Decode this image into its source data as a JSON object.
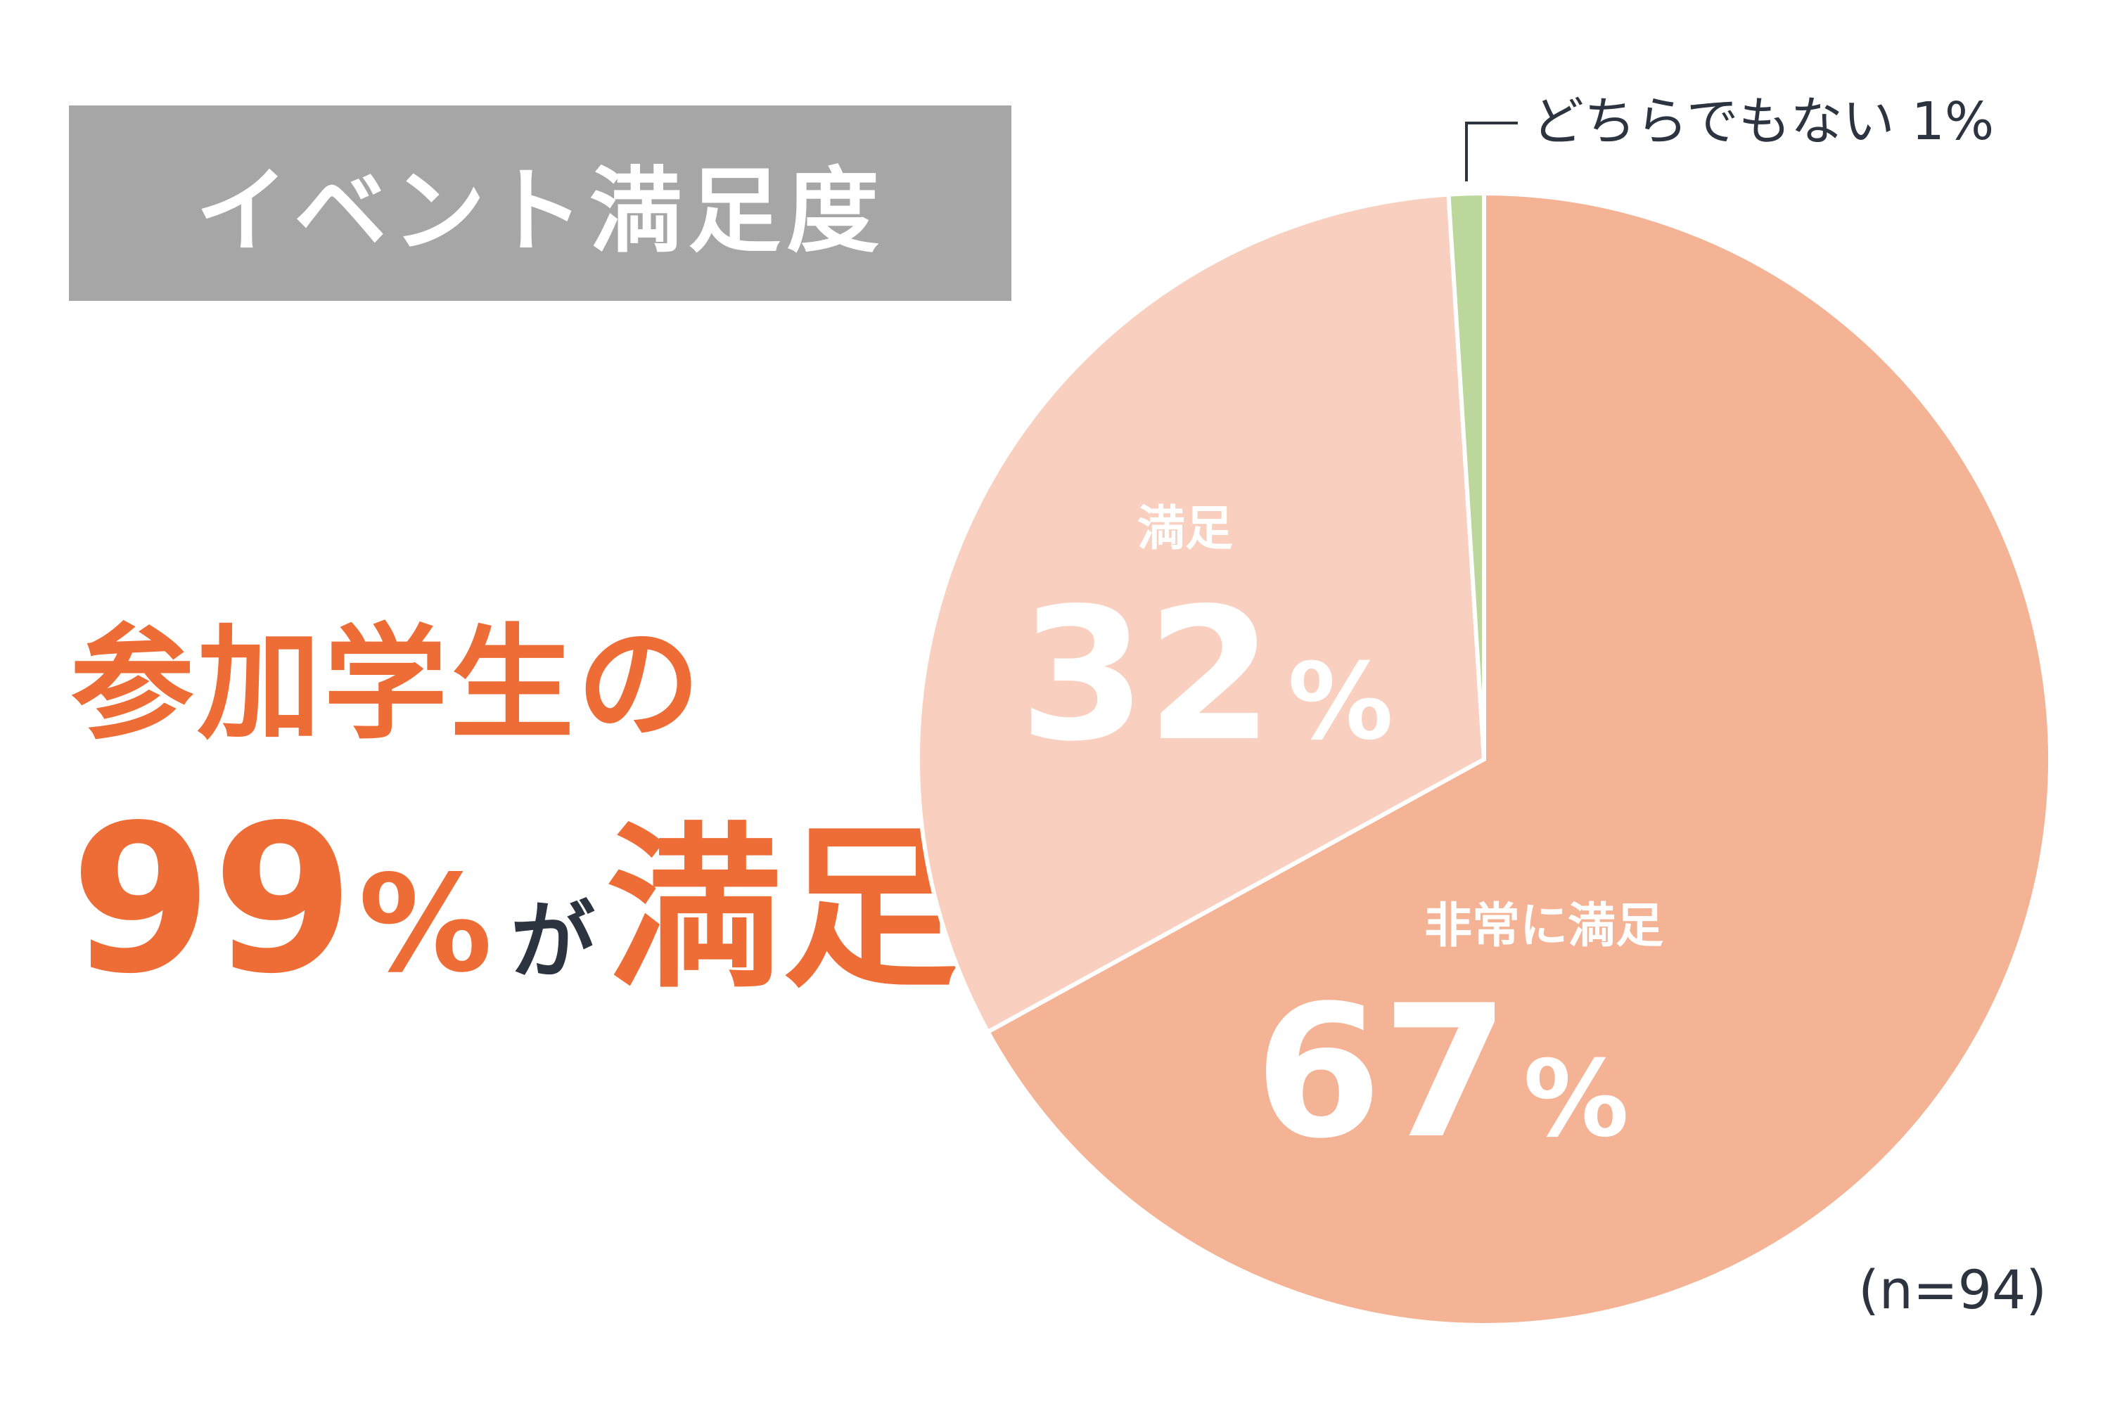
{
  "title": "イベント満足度",
  "headline": {
    "line1": "参加学生の",
    "number": "99",
    "percent": "%",
    "particle": "が",
    "word": "満足"
  },
  "sample_note": "(n=94)",
  "colors": {
    "title_bg": "#a6a6a6",
    "accent": "#ee6c35",
    "very_satisfied": "#f5b396",
    "satisfied": "#f9d0bf",
    "neutral": "#bcd79b"
  },
  "chart_data": {
    "type": "pie",
    "slices": [
      {
        "label": "非常に満足",
        "value": 67,
        "display": "67",
        "pct": "%",
        "color": "#f5b396"
      },
      {
        "label": "満足",
        "value": 32,
        "display": "32",
        "pct": "%",
        "color": "#f9d0bf"
      },
      {
        "label": "どちらでもない",
        "value": 1,
        "display": "1%",
        "color": "#bcd79b"
      }
    ]
  }
}
